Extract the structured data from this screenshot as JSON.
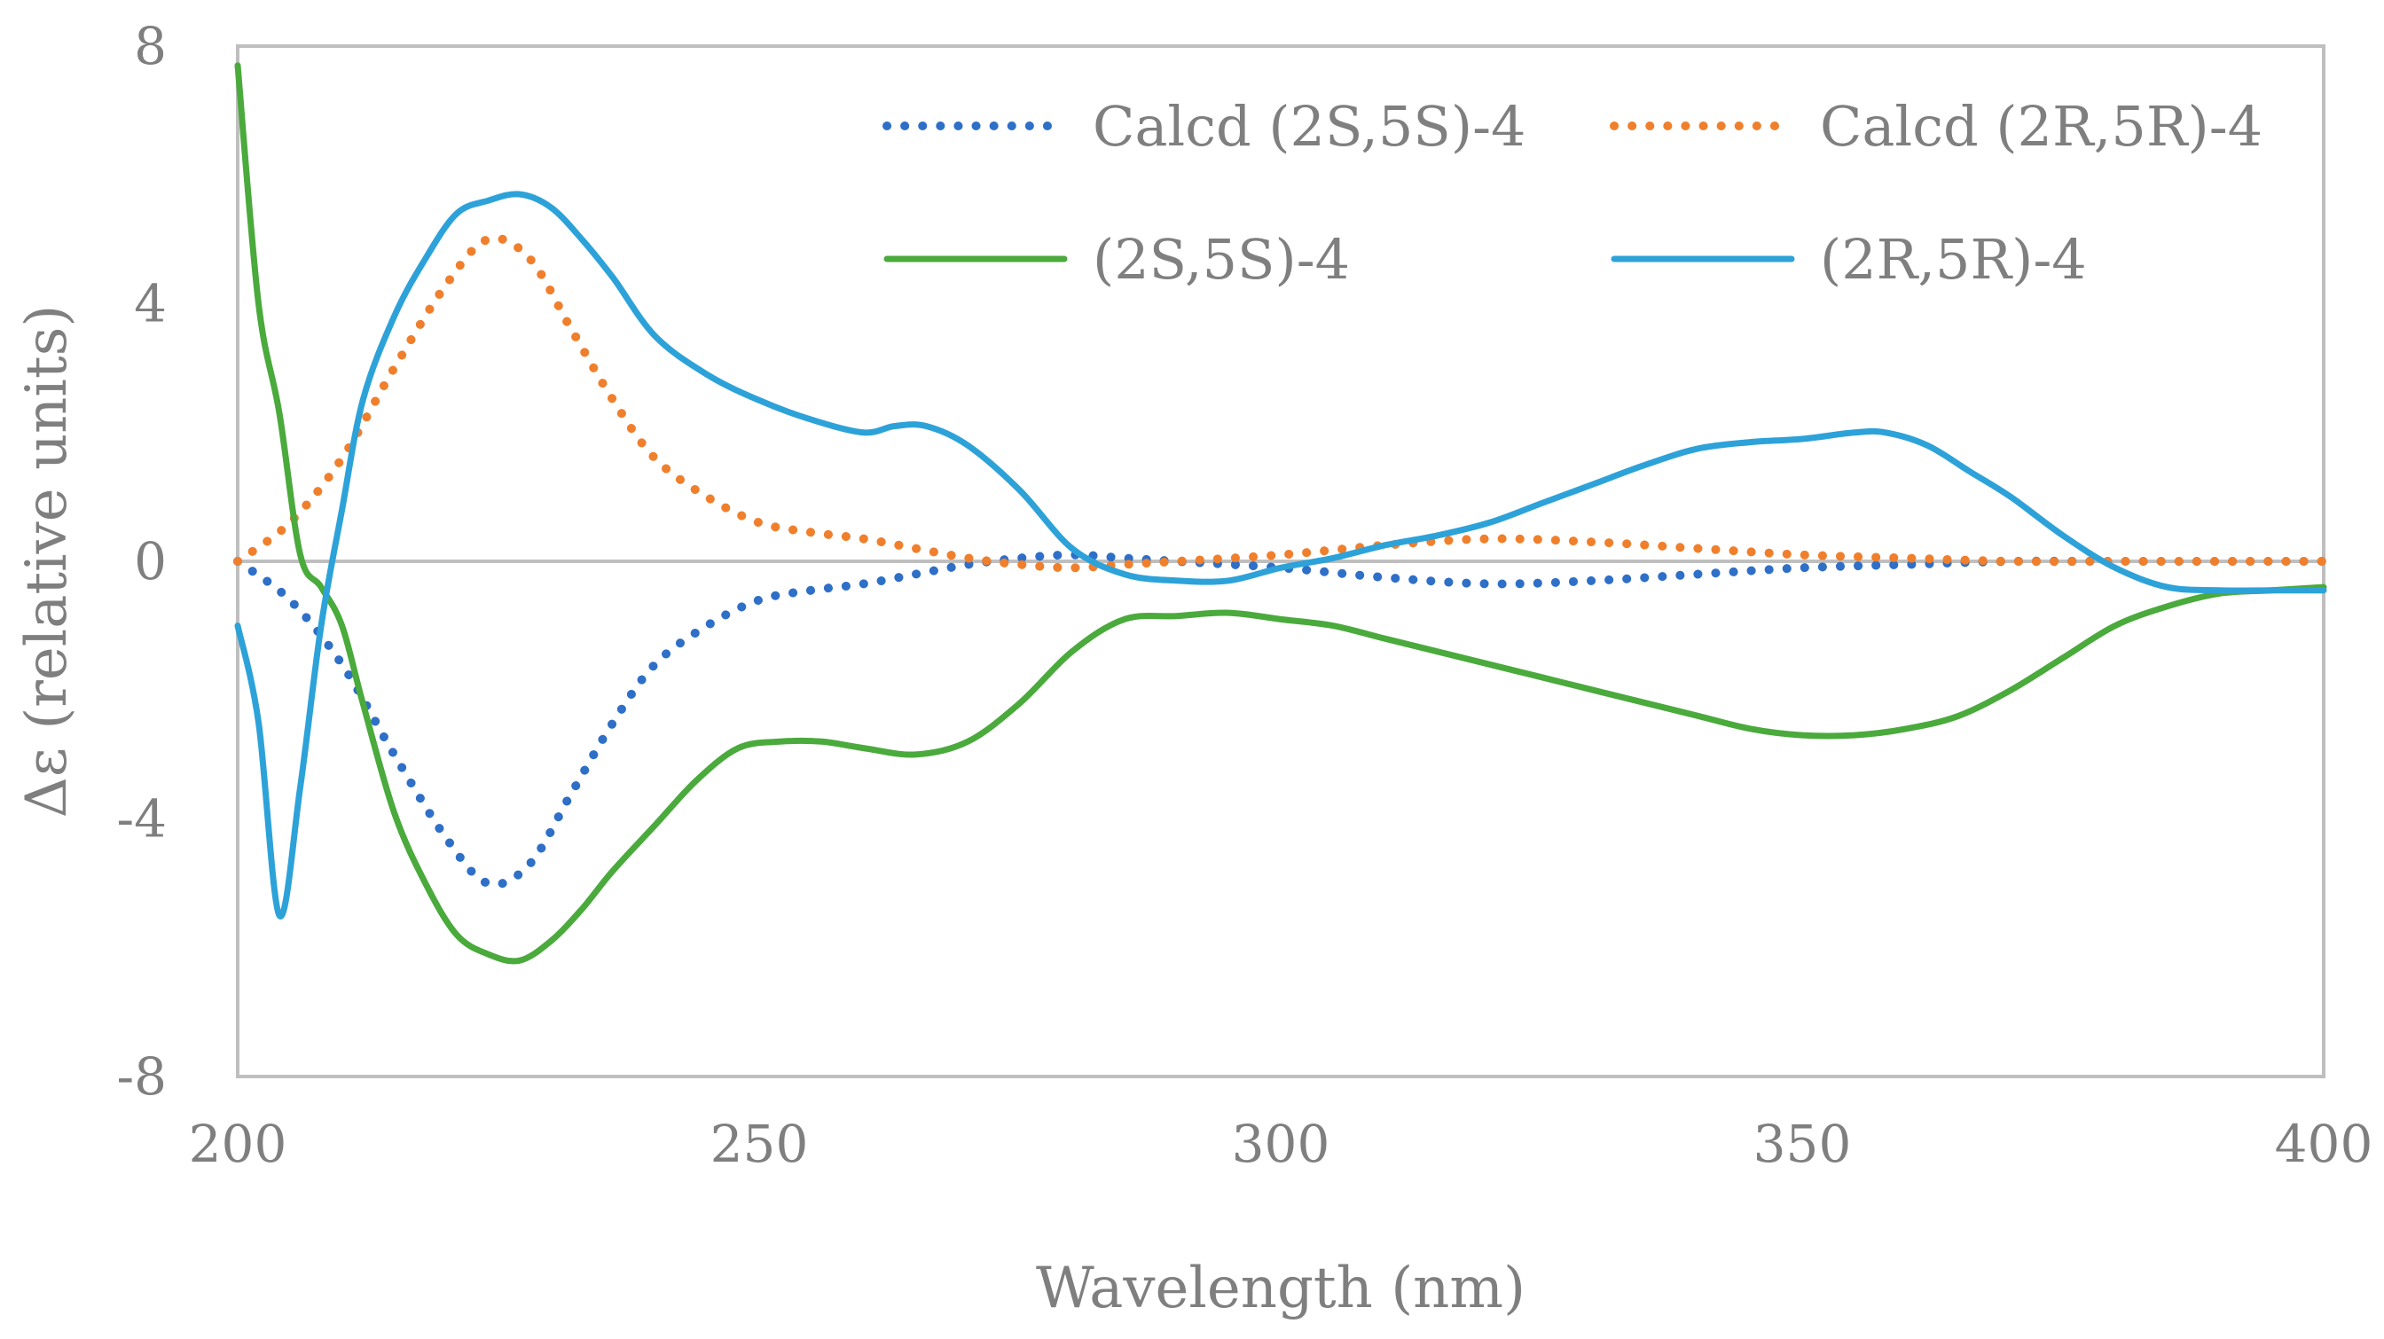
{
  "chart_data": {
    "type": "line",
    "title": "",
    "xlabel": "Wavelength (nm)",
    "ylabel": "Δε (relative units)",
    "xlim": [
      200,
      400
    ],
    "ylim": [
      -8,
      8
    ],
    "xticks": [
      200,
      250,
      300,
      350,
      400
    ],
    "yticks": [
      -8,
      -4,
      0,
      4,
      8
    ],
    "tick_labels_x": [
      "200",
      "250",
      "300",
      "350",
      "400"
    ],
    "tick_labels_y": [
      "-8",
      "-4",
      "0",
      "4",
      "8"
    ],
    "grid": false,
    "legend_position": "top-right",
    "series": [
      {
        "name": "Calcd (2S,5S)-4",
        "color": "#2e6fc7",
        "style": "dotted",
        "x": [
          200,
          205,
          210,
          215,
          220,
          224,
          228,
          232,
          236,
          240,
          245,
          250,
          255,
          260,
          265,
          270,
          275,
          280,
          285,
          290,
          300,
          310,
          320,
          330,
          340,
          350,
          360,
          370,
          380,
          390,
          400
        ],
        "y": [
          0,
          -0.6,
          -1.6,
          -3.0,
          -4.3,
          -5.0,
          -4.7,
          -3.6,
          -2.5,
          -1.6,
          -1.0,
          -0.6,
          -0.45,
          -0.35,
          -0.2,
          -0.05,
          0.05,
          0.1,
          0.05,
          0,
          -0.1,
          -0.25,
          -0.35,
          -0.3,
          -0.2,
          -0.1,
          -0.05,
          0,
          0,
          0,
          0
        ]
      },
      {
        "name": "Calcd (2R,5R)-4",
        "color": "#f07f2c",
        "style": "dotted",
        "x": [
          200,
          205,
          210,
          215,
          220,
          224,
          228,
          232,
          236,
          240,
          245,
          250,
          255,
          260,
          265,
          270,
          275,
          280,
          285,
          290,
          300,
          310,
          320,
          330,
          340,
          350,
          360,
          370,
          380,
          390,
          400
        ],
        "y": [
          0,
          0.6,
          1.6,
          3.0,
          4.3,
          5.0,
          4.7,
          3.6,
          2.5,
          1.6,
          1.0,
          0.6,
          0.45,
          0.35,
          0.2,
          0.05,
          -0.05,
          -0.1,
          -0.05,
          0,
          0.1,
          0.25,
          0.35,
          0.3,
          0.2,
          0.1,
          0.05,
          0,
          0,
          0,
          0
        ]
      },
      {
        "name": "(2S,5S)-4",
        "color": "#4aaa3c",
        "style": "solid",
        "x": [
          200,
          202,
          204,
          206,
          208,
          210,
          212,
          215,
          218,
          221,
          224,
          227,
          230,
          233,
          236,
          240,
          244,
          248,
          252,
          256,
          260,
          265,
          270,
          275,
          280,
          285,
          290,
          295,
          300,
          305,
          310,
          315,
          320,
          325,
          330,
          335,
          340,
          345,
          350,
          355,
          360,
          365,
          370,
          375,
          380,
          385,
          390,
          395,
          400
        ],
        "y": [
          7.7,
          4.0,
          2.3,
          0.1,
          -0.4,
          -1.0,
          -2.2,
          -3.9,
          -5.0,
          -5.8,
          -6.1,
          -6.2,
          -5.9,
          -5.4,
          -4.8,
          -4.1,
          -3.4,
          -2.9,
          -2.8,
          -2.8,
          -2.9,
          -3.0,
          -2.8,
          -2.2,
          -1.4,
          -0.9,
          -0.85,
          -0.8,
          -0.9,
          -1.0,
          -1.2,
          -1.4,
          -1.6,
          -1.8,
          -2.0,
          -2.2,
          -2.4,
          -2.6,
          -2.7,
          -2.7,
          -2.6,
          -2.4,
          -2.0,
          -1.5,
          -1.0,
          -0.7,
          -0.5,
          -0.45,
          -0.4
        ]
      },
      {
        "name": "(2R,5R)-4",
        "color": "#2da2d9",
        "style": "solid",
        "x": [
          200,
          202,
          204,
          206,
          208,
          210,
          212,
          215,
          218,
          221,
          224,
          227,
          230,
          233,
          236,
          240,
          245,
          250,
          255,
          260,
          263,
          266,
          270,
          275,
          280,
          285,
          290,
          295,
          300,
          305,
          310,
          315,
          320,
          325,
          330,
          335,
          340,
          345,
          350,
          355,
          358,
          362,
          366,
          370,
          375,
          380,
          385,
          390,
          395,
          400
        ],
        "y": [
          -1.0,
          -2.5,
          -5.5,
          -3.5,
          -1.0,
          0.8,
          2.5,
          3.8,
          4.7,
          5.4,
          5.6,
          5.7,
          5.5,
          5.0,
          4.4,
          3.5,
          2.9,
          2.5,
          2.2,
          2.0,
          2.1,
          2.1,
          1.8,
          1.1,
          0.2,
          -0.2,
          -0.3,
          -0.3,
          -0.1,
          0.05,
          0.25,
          0.4,
          0.6,
          0.9,
          1.2,
          1.5,
          1.75,
          1.85,
          1.9,
          2.0,
          2.0,
          1.8,
          1.4,
          1.0,
          0.4,
          -0.1,
          -0.4,
          -0.45,
          -0.45,
          -0.45
        ]
      }
    ]
  }
}
